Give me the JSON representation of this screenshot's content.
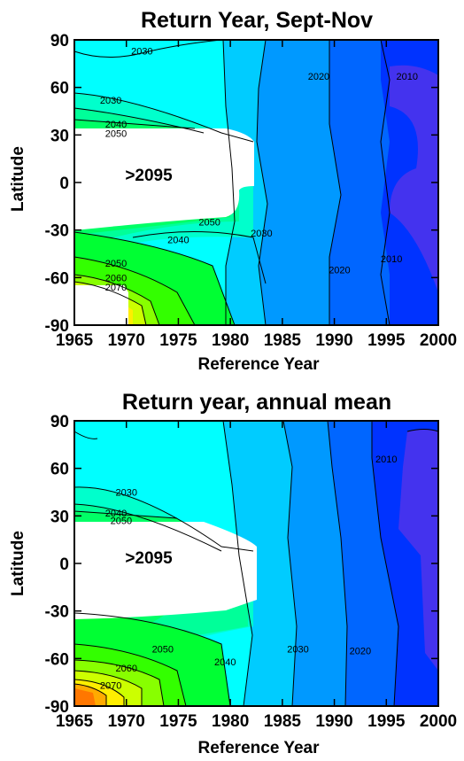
{
  "chart_data": [
    {
      "type": "contour",
      "title": "Return Year, Sept-Nov",
      "xlabel": "Reference Year",
      "ylabel": "Latitude",
      "xlim": [
        1965,
        2000
      ],
      "ylim": [
        -90,
        90
      ],
      "xticks": [
        "1965",
        "1970",
        "1975",
        "1980",
        "1985",
        "1990",
        "1995",
        "2000"
      ],
      "yticks": [
        "90",
        "60",
        "30",
        "0",
        "-30",
        "-60",
        "-90"
      ],
      "no_return_label": ">2095",
      "contour_labels": [
        {
          "text": "2030",
          "x": 1971.5,
          "y": 83
        },
        {
          "text": "2020",
          "x": 1988.5,
          "y": 67
        },
        {
          "text": "2010",
          "x": 1997.0,
          "y": 67
        },
        {
          "text": "2030",
          "x": 1968.5,
          "y": 52
        },
        {
          "text": "2040",
          "x": 1969.0,
          "y": 37
        },
        {
          "text": "2050",
          "x": 1969.0,
          "y": 31
        },
        {
          "text": "2030",
          "x": 1983.0,
          "y": -32
        },
        {
          "text": "2040",
          "x": 1975.0,
          "y": -36
        },
        {
          "text": "2050",
          "x": 1978.0,
          "y": -25
        },
        {
          "text": "2020",
          "x": 1990.5,
          "y": -55
        },
        {
          "text": "2010",
          "x": 1995.5,
          "y": -48
        },
        {
          "text": "2050",
          "x": 1969.0,
          "y": -51
        },
        {
          "text": "2060",
          "x": 1969.0,
          "y": -60
        },
        {
          "text": "2070",
          "x": 1969.0,
          "y": -66
        }
      ]
    },
    {
      "type": "contour",
      "title": "Return year, annual mean",
      "xlabel": "Reference Year",
      "ylabel": "Latitude",
      "xlim": [
        1965,
        2000
      ],
      "ylim": [
        -90,
        90
      ],
      "xticks": [
        "1965",
        "1970",
        "1975",
        "1980",
        "1985",
        "1990",
        "1995",
        "2000"
      ],
      "yticks": [
        "90",
        "60",
        "30",
        "0",
        "-30",
        "-60",
        "-90"
      ],
      "no_return_label": ">2095",
      "contour_labels": [
        {
          "text": "2010",
          "x": 1995.0,
          "y": 66
        },
        {
          "text": "2030",
          "x": 1970.0,
          "y": 45
        },
        {
          "text": "2040",
          "x": 1969.0,
          "y": 32
        },
        {
          "text": "2050",
          "x": 1969.5,
          "y": 27
        },
        {
          "text": "2050",
          "x": 1973.5,
          "y": -54
        },
        {
          "text": "2060",
          "x": 1970.0,
          "y": -66
        },
        {
          "text": "2070",
          "x": 1968.5,
          "y": -77
        },
        {
          "text": "2040",
          "x": 1979.5,
          "y": -62
        },
        {
          "text": "2030",
          "x": 1986.5,
          "y": -54
        },
        {
          "text": "2020",
          "x": 1992.5,
          "y": -55
        }
      ]
    }
  ]
}
